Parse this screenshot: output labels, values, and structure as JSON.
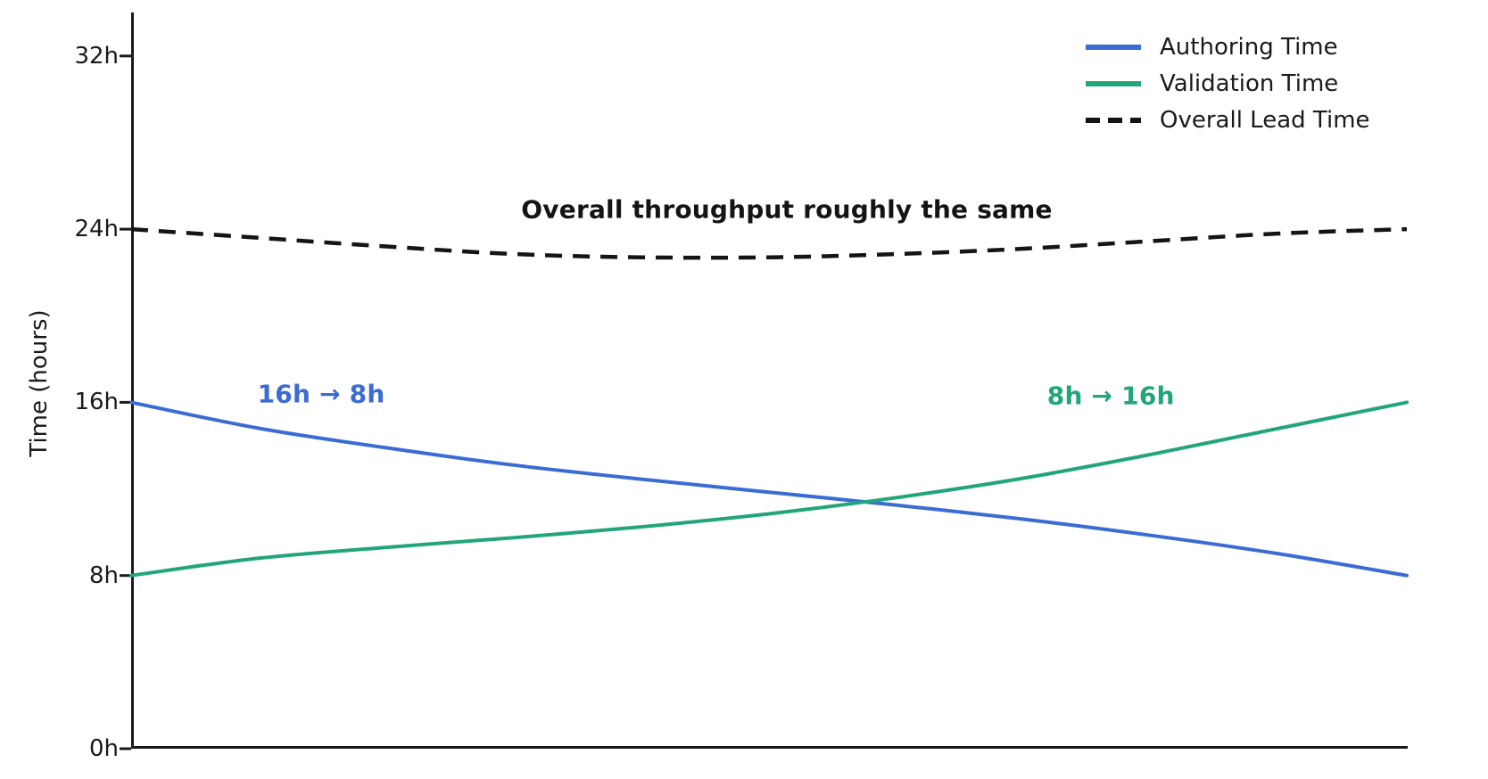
{
  "figure": {
    "background_color": "#ffffff",
    "axis_color": "#1a1a1a",
    "text_color": "#1a1a1a"
  },
  "chart_data": {
    "type": "line",
    "title": "",
    "xlabel": "",
    "ylabel": "Time (hours)",
    "grid": false,
    "x_range": [
      0,
      1
    ],
    "x_ticks_visible": false,
    "ylim": [
      0,
      34
    ],
    "y_ticks": [
      {
        "value": 0,
        "label": "0h"
      },
      {
        "value": 8,
        "label": "8h"
      },
      {
        "value": 16,
        "label": "16h"
      },
      {
        "value": 24,
        "label": "24h"
      },
      {
        "value": 32,
        "label": "32h"
      }
    ],
    "legend_position": "top-right",
    "series": [
      {
        "name": "Authoring Time",
        "color": "#3a6cd3",
        "style": "solid",
        "start_value": 16,
        "end_value": 8,
        "points": [
          [
            0,
            16
          ],
          [
            0.1,
            14.8
          ],
          [
            0.2,
            13.9
          ],
          [
            0.3,
            13.1
          ],
          [
            0.4,
            12.45
          ],
          [
            0.5,
            11.85
          ],
          [
            0.6,
            11.25
          ],
          [
            0.7,
            10.6
          ],
          [
            0.8,
            9.85
          ],
          [
            0.9,
            9.0
          ],
          [
            1,
            8
          ]
        ]
      },
      {
        "name": "Validation Time",
        "color": "#22a679",
        "style": "solid",
        "start_value": 8,
        "end_value": 16,
        "points": [
          [
            0,
            8
          ],
          [
            0.1,
            8.8
          ],
          [
            0.2,
            9.3
          ],
          [
            0.3,
            9.75
          ],
          [
            0.4,
            10.25
          ],
          [
            0.5,
            10.85
          ],
          [
            0.6,
            11.6
          ],
          [
            0.7,
            12.5
          ],
          [
            0.8,
            13.6
          ],
          [
            0.9,
            14.8
          ],
          [
            1,
            16
          ]
        ]
      },
      {
        "name": "Overall Lead Time",
        "color": "#141414",
        "style": "dashed",
        "start_value": 24,
        "end_value": 24,
        "points": [
          [
            0,
            24
          ],
          [
            0.1,
            23.6
          ],
          [
            0.2,
            23.2
          ],
          [
            0.3,
            22.85
          ],
          [
            0.4,
            22.7
          ],
          [
            0.5,
            22.7
          ],
          [
            0.6,
            22.85
          ],
          [
            0.7,
            23.1
          ],
          [
            0.8,
            23.45
          ],
          [
            0.9,
            23.8
          ],
          [
            1,
            24
          ]
        ]
      }
    ],
    "annotations": [
      {
        "text": "Overall throughput roughly the same",
        "color": "#141414",
        "t": 0.514,
        "value": 24.9
      },
      {
        "text": "16h → 8h",
        "color": "#3a6cd3",
        "t": 0.149,
        "value": 16.4
      },
      {
        "text": "8h → 16h",
        "color": "#22a679",
        "t": 0.768,
        "value": 16.3
      }
    ]
  }
}
